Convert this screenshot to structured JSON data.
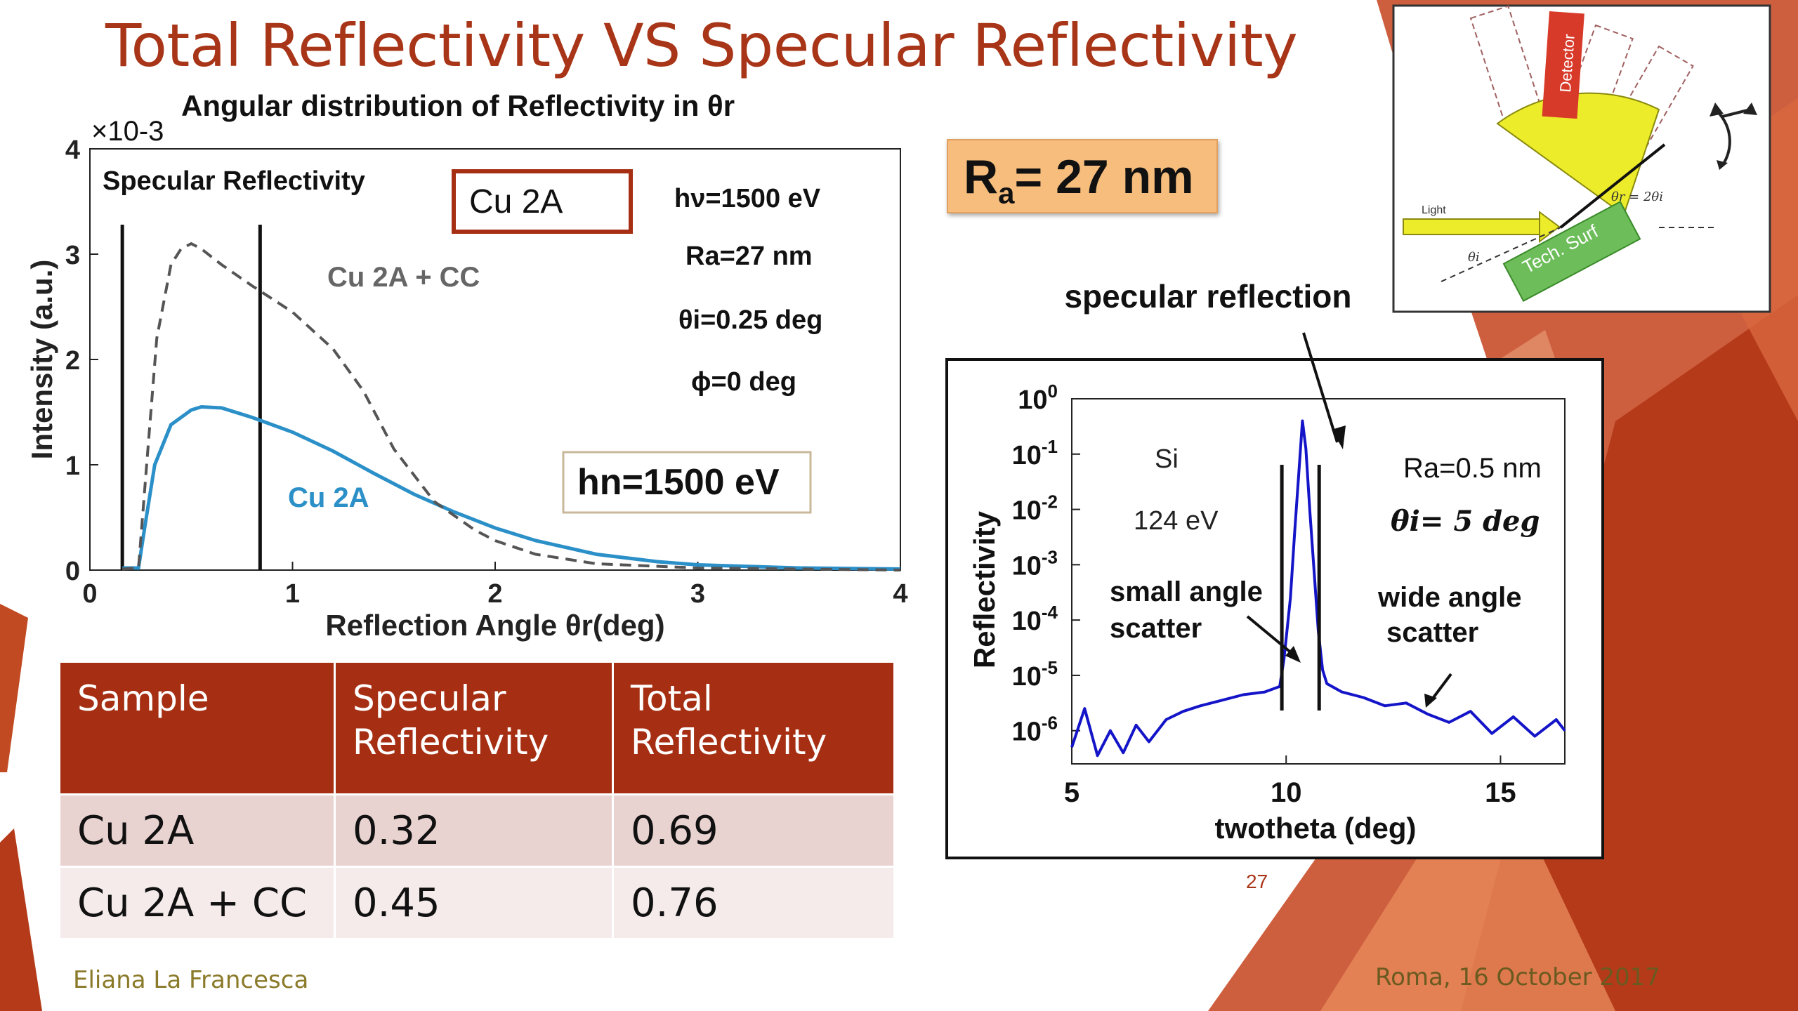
{
  "slide": {
    "title": "Total Reflectivity VS Specular Reflectivity",
    "author": "Eliana La Francesca",
    "place_date": "Roma, 16 October 2017",
    "page_number": "27",
    "roughness_box": {
      "label": "R",
      "sub": "a",
      "value": "= 27 nm"
    },
    "colors": {
      "title": "#a83518",
      "table_header": "#a62f13",
      "accent_orange": "#f6bd7d"
    }
  },
  "table": {
    "headers": [
      "Sample",
      "Specular Reflectivity",
      "Total Reflectivity"
    ],
    "rows": [
      [
        "Cu 2A",
        "0.32",
        "0.69"
      ],
      [
        "Cu 2A + CC",
        "0.45",
        "0.76"
      ]
    ]
  },
  "chart_data": [
    {
      "type": "line",
      "title": "Angular distribution of Reflectivity in θr",
      "xlabel": "Reflection Angle θr(deg)",
      "ylabel": "Intensity (a.u.)",
      "xlim": [
        0,
        4
      ],
      "ylim": [
        0,
        4
      ],
      "y_multiplier": "×10-3",
      "xticks": [
        0,
        1,
        2,
        3,
        4
      ],
      "yticks": [
        0,
        1,
        2,
        3,
        4
      ],
      "grid": false,
      "annotations": {
        "specular_label": "Specular Reflectivity",
        "sample_box": "Cu 2A",
        "energy": "hν=1500 eV",
        "roughness": "Ra=27 nm",
        "incidence": "θi=0.25 deg",
        "phi": "ϕ=0 deg",
        "energy_box": "hn=1500 eV"
      },
      "vertical_lines_x": [
        0.16,
        0.84
      ],
      "series": [
        {
          "name": "Cu 2A",
          "color": "#2b8fc8",
          "dash": "solid",
          "x": [
            0.16,
            0.24,
            0.27,
            0.32,
            0.4,
            0.5,
            0.55,
            0.65,
            0.8,
            1.0,
            1.2,
            1.4,
            1.6,
            1.8,
            2.0,
            2.2,
            2.5,
            2.8,
            3.0,
            3.5,
            4.0
          ],
          "y": [
            0.02,
            0.02,
            0.4,
            1.0,
            1.38,
            1.52,
            1.55,
            1.54,
            1.45,
            1.31,
            1.13,
            0.92,
            0.72,
            0.55,
            0.4,
            0.28,
            0.15,
            0.08,
            0.05,
            0.02,
            0.01
          ]
        },
        {
          "name": "Cu 2A + CC",
          "color": "#555555",
          "dash": "dashed",
          "x": [
            0.16,
            0.24,
            0.28,
            0.33,
            0.4,
            0.45,
            0.5,
            0.55,
            0.65,
            0.8,
            1.0,
            1.2,
            1.35,
            1.5,
            1.7,
            1.9,
            2.0,
            2.2,
            2.5,
            3.0,
            4.0
          ],
          "y": [
            0.01,
            0.02,
            1.0,
            2.2,
            2.9,
            3.05,
            3.1,
            3.05,
            2.9,
            2.7,
            2.45,
            2.1,
            1.7,
            1.15,
            0.65,
            0.38,
            0.28,
            0.15,
            0.06,
            0.02,
            0.0
          ]
        }
      ]
    },
    {
      "type": "line",
      "title": "specular reflection",
      "xlabel": "twotheta (deg)",
      "ylabel": "Reflectivity",
      "xlim": [
        5,
        16.5
      ],
      "ylim_log10": [
        -6.6,
        0
      ],
      "log_y": true,
      "xticks": [
        5,
        10,
        15
      ],
      "yticks_exp": [
        0,
        -1,
        -2,
        -3,
        -4,
        -5,
        -6
      ],
      "grid": false,
      "annotations": {
        "material": "Si",
        "energy": "124 eV",
        "roughness": "Ra=0.5 nm",
        "incidence": "θi= 5 deg",
        "small_angle": [
          "small angle",
          "scatter"
        ],
        "wide_angle": [
          "wide angle",
          "scatter"
        ]
      },
      "vertical_lines_x": [
        9.9,
        10.77
      ],
      "series": [
        {
          "name": "Si 124 eV",
          "color": "#1414c8",
          "x": [
            5.0,
            5.3,
            5.6,
            5.9,
            6.2,
            6.5,
            6.8,
            7.2,
            7.6,
            8.0,
            8.5,
            9.0,
            9.5,
            9.85,
            9.95,
            10.1,
            10.2,
            10.3,
            10.38,
            10.46,
            10.55,
            10.65,
            10.75,
            10.85,
            10.95,
            11.3,
            11.8,
            12.3,
            12.8,
            13.3,
            13.8,
            14.3,
            14.8,
            15.3,
            15.8,
            16.3,
            16.5
          ],
          "y": [
            -6.3,
            -5.6,
            -6.45,
            -6.0,
            -6.4,
            -5.9,
            -6.2,
            -5.8,
            -5.65,
            -5.55,
            -5.45,
            -5.35,
            -5.3,
            -5.2,
            -4.7,
            -3.6,
            -2.4,
            -1.3,
            -0.4,
            -0.9,
            -2.0,
            -3.1,
            -4.2,
            -4.9,
            -5.15,
            -5.3,
            -5.4,
            -5.55,
            -5.5,
            -5.7,
            -5.85,
            -5.65,
            -6.05,
            -5.75,
            -6.1,
            -5.8,
            -6.0
          ]
        }
      ]
    }
  ],
  "diagram": {
    "detector": "Detector",
    "light": "Light",
    "surface": "Tech. Surf",
    "theta_r": "θr = 2θi",
    "theta_i": "θi"
  }
}
